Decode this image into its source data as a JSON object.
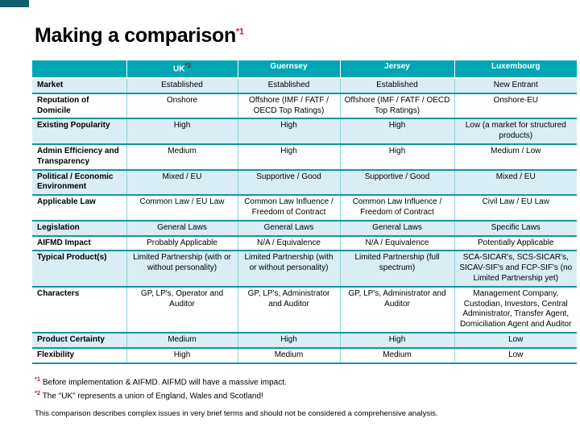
{
  "title": {
    "text": "Making a comparison",
    "footnote_ref": "*1"
  },
  "table": {
    "columns": [
      "",
      "UK",
      "Guernsey",
      "Jersey",
      "Luxembourg"
    ],
    "uk_footnote_ref": "*2",
    "rows": [
      {
        "label": "Market",
        "cells": [
          "Established",
          "Established",
          "Established",
          "New Entrant"
        ],
        "shaded": true
      },
      {
        "label": "Reputation of Domicile",
        "cells": [
          "Onshore",
          "Offshore (IMF / FATF / OECD Top Ratings)",
          "Offshore (IMF / FATF / OECD Top Ratings)",
          "Onshore-EU"
        ],
        "shaded": false
      },
      {
        "label": "Existing Popularity",
        "cells": [
          "High",
          "High",
          "High",
          "Low (a market for structured products)"
        ],
        "shaded": true
      },
      {
        "label": "Admin Efficiency and Transparency",
        "cells": [
          "Medium",
          "High",
          "High",
          "Medium / Low"
        ],
        "shaded": false
      },
      {
        "label": "Political / Economic Environment",
        "cells": [
          "Mixed / EU",
          "Supportive / Good",
          "Supportive / Good",
          "Mixed / EU"
        ],
        "shaded": true
      },
      {
        "label": "Applicable Law",
        "cells": [
          "Common Law / EU Law",
          "Common Law Influence / Freedom of Contract",
          "Common Law Influence / Freedom of Contract",
          "Civil Law / EU Law"
        ],
        "shaded": false
      },
      {
        "label": "Legislation",
        "cells": [
          "General Laws",
          "General Laws",
          "General Laws",
          "Specific Laws"
        ],
        "shaded": true
      },
      {
        "label": "AIFMD Impact",
        "cells": [
          "Probably Applicable",
          "N/A / Equivalence",
          "N/A / Equivalence",
          "Potentially Applicable"
        ],
        "shaded": false
      },
      {
        "label": "Typical Product(s)",
        "cells": [
          "Limited Partnership (with or without personality)",
          "Limited Partnership (with or without personality)",
          "Limited Partnership (full spectrum)",
          "SCA-SICAR's, SCS-SICAR's, SICAV-SIF's and FCP-SIF's (no Limited Partnership yet)"
        ],
        "shaded": true
      },
      {
        "label": "Characters",
        "cells": [
          "GP, LP's, Operator and Auditor",
          "GP, LP's, Administrator and Auditor",
          "GP, LP's, Administrator and Auditor",
          "Management Company, Custodian, Investors, Central Administrator, Transfer Agent, Domiciliation Agent and Auditor"
        ],
        "shaded": false
      },
      {
        "label": "Product Certainty",
        "cells": [
          "Medium",
          "High",
          "High",
          "Low"
        ],
        "shaded": true
      },
      {
        "label": "Flexibility",
        "cells": [
          "High",
          "Medium",
          "Medium",
          "Low"
        ],
        "shaded": false
      }
    ]
  },
  "footnotes": [
    {
      "marker": "*1",
      "text": "Before implementation & AIFMD. AIFMD will have a massive impact."
    },
    {
      "marker": "*2",
      "text": "The \"UK\" represents a union of England, Wales and Scotland!"
    }
  ],
  "disclaimer": "This comparison describes complex issues in very brief terms and should not be considered a comprehensive analysis.",
  "colors": {
    "header_teal": "#00A6B4",
    "row_shade": "#D9EDF4",
    "border_teal": "#1295A5",
    "accent_red": "#B22222",
    "corner_mark": "#10616B"
  }
}
